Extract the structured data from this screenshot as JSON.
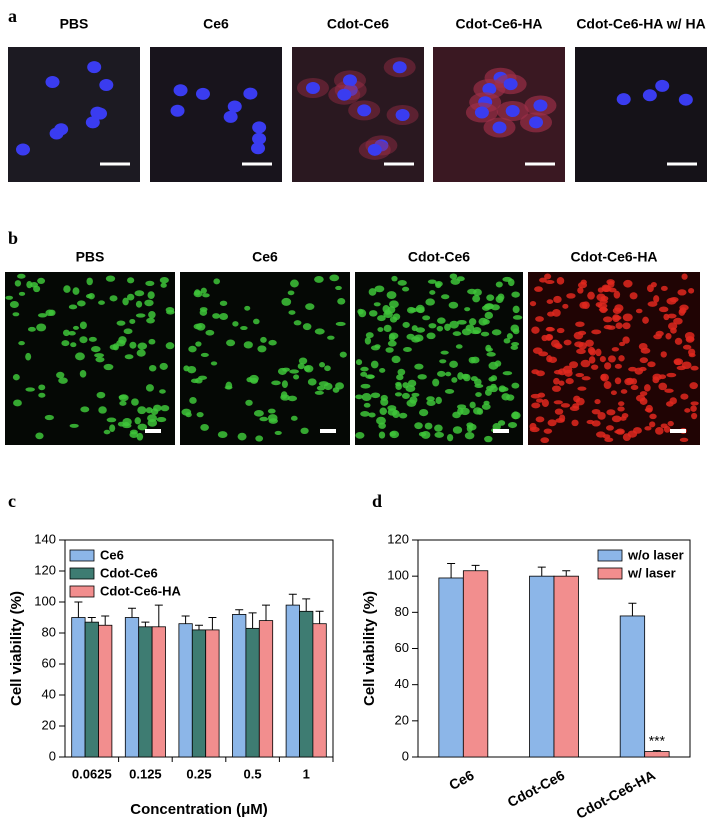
{
  "panel_a": {
    "label": "a",
    "images": [
      "PBS",
      "Ce6",
      "Cdot-Ce6",
      "Cdot-Ce6-HA",
      "Cdot-Ce6-HA w/ HA"
    ]
  },
  "panel_b": {
    "label": "b",
    "images": [
      "PBS",
      "Ce6",
      "Cdot-Ce6",
      "Cdot-Ce6-HA"
    ]
  },
  "chart_data": [
    {
      "type": "bar",
      "panel_label": "c",
      "x_label": "Concentration (μM)",
      "y_label": "Cell viability (%)",
      "categories": [
        "0.0625",
        "0.125",
        "0.25",
        "0.5",
        "1"
      ],
      "series": [
        {
          "name": "Ce6",
          "color": "#8cb6e8",
          "values": [
            90,
            90,
            86,
            92,
            98
          ],
          "errors": [
            10,
            6,
            5,
            3,
            7
          ]
        },
        {
          "name": "Cdot-Ce6",
          "color": "#3e7c72",
          "values": [
            87,
            84,
            82,
            83,
            94
          ],
          "errors": [
            3,
            3,
            3,
            10,
            8
          ]
        },
        {
          "name": "Cdot-Ce6-HA",
          "color": "#f28e8e",
          "values": [
            85,
            84,
            82,
            88,
            86
          ],
          "errors": [
            6,
            14,
            8,
            10,
            8
          ]
        }
      ],
      "ylim": [
        0,
        140
      ],
      "yticks": [
        0,
        20,
        40,
        60,
        80,
        100,
        120,
        140
      ],
      "legend": "upper left"
    },
    {
      "type": "bar",
      "panel_label": "d",
      "y_label": "Cell viability (%)",
      "categories": [
        "Ce6",
        "Cdot-Ce6",
        "Cdot-Ce6-HA"
      ],
      "series": [
        {
          "name": "w/o laser",
          "color": "#8cb6e8",
          "values": [
            99,
            100,
            78
          ],
          "errors": [
            8,
            5,
            7
          ]
        },
        {
          "name": "w/ laser",
          "color": "#f28e8e",
          "values": [
            103,
            100,
            3
          ],
          "errors": [
            3,
            3,
            0.5
          ]
        }
      ],
      "annotation": "***",
      "ylim": [
        0,
        120
      ],
      "yticks": [
        0,
        20,
        40,
        60,
        80,
        100,
        120
      ],
      "legend": "upper right"
    }
  ]
}
